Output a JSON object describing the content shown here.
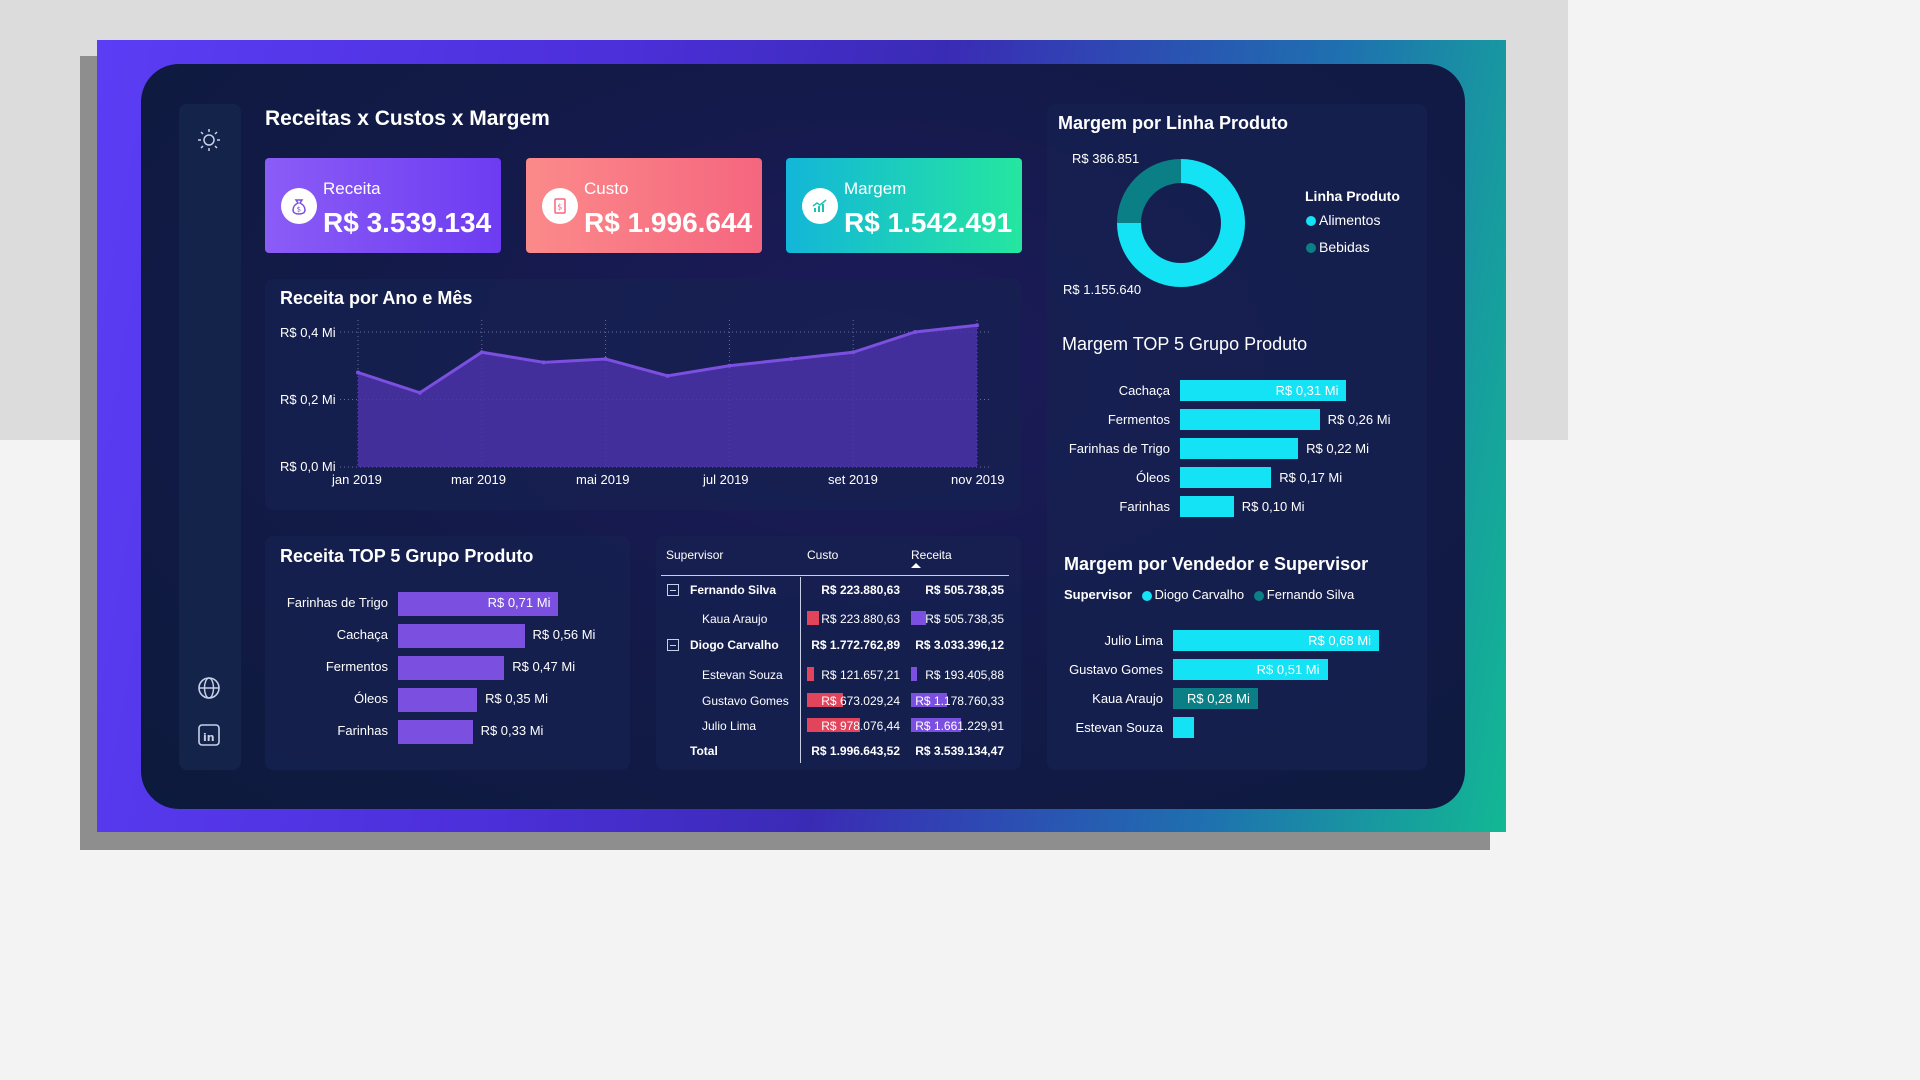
{
  "page": {
    "title": "Receitas x Custos x Margem"
  },
  "sidebar": {
    "icons": [
      "sun-icon",
      "globe-icon",
      "linkedin-icon"
    ]
  },
  "kpis": {
    "receita": {
      "label": "Receita",
      "value": "R$ 3.539.134",
      "icon": "money-bag-icon"
    },
    "custo": {
      "label": "Custo",
      "value": "R$ 1.996.644",
      "icon": "receipt-icon"
    },
    "margem": {
      "label": "Margem",
      "value": "R$ 1.542.491",
      "icon": "growth-chart-icon"
    }
  },
  "colors": {
    "purple": "#7b4fe0",
    "cyan": "#14e2f5",
    "teal": "#0b7f86",
    "red": "#e2445c"
  },
  "revenue_chart": {
    "title": "Receita por Ano e Mês",
    "y_ticks": [
      "R$ 0,4 Mi",
      "R$ 0,2 Mi",
      "R$ 0,0 Mi"
    ],
    "x_ticks": [
      "jan 2019",
      "mar 2019",
      "mai 2019",
      "jul 2019",
      "set 2019",
      "nov 2019"
    ]
  },
  "top5_receita": {
    "title": "Receita TOP 5 Grupo Produto",
    "items": [
      {
        "label": "Farinhas de Trigo",
        "value": "R$ 0,71 Mi"
      },
      {
        "label": "Cachaça",
        "value": "R$ 0,56 Mi"
      },
      {
        "label": "Fermentos",
        "value": "R$ 0,47 Mi"
      },
      {
        "label": "Óleos",
        "value": "R$ 0,35 Mi"
      },
      {
        "label": "Farinhas",
        "value": "R$ 0,33 Mi"
      }
    ]
  },
  "table": {
    "headers": {
      "supervisor": "Supervisor",
      "custo": "Custo",
      "receita": "Receita"
    },
    "rows": [
      {
        "name": "Fernando Silva",
        "custo": "R$ 223.880,63",
        "receita": "R$ 505.738,35",
        "group": true
      },
      {
        "name": "Kaua Araujo",
        "custo": "R$ 223.880,63",
        "receita": "R$ 505.738,35",
        "group": false
      },
      {
        "name": "Diogo Carvalho",
        "custo": "R$ 1.772.762,89",
        "receita": "R$ 3.033.396,12",
        "group": true
      },
      {
        "name": "Estevan Souza",
        "custo": "R$ 121.657,21",
        "receita": "R$ 193.405,88",
        "group": false
      },
      {
        "name": "Gustavo Gomes",
        "custo": "R$ 673.029,24",
        "receita": "R$ 1.178.760,33",
        "group": false
      },
      {
        "name": "Julio Lima",
        "custo": "R$ 978.076,44",
        "receita": "R$ 1.661.229,91",
        "group": false
      }
    ],
    "total": {
      "label": "Total",
      "custo": "R$ 1.996.643,52",
      "receita": "R$ 3.539.134,47"
    }
  },
  "donut": {
    "title": "Margem por Linha Produto",
    "label_top": "R$ 386.851",
    "label_bottom": "R$ 1.155.640",
    "legend_title": "Linha Produto",
    "legend": [
      "Alimentos",
      "Bebidas"
    ]
  },
  "top5_margem": {
    "title": "Margem TOP 5 Grupo Produto",
    "items": [
      {
        "label": "Cachaça",
        "value": "R$ 0,31 Mi"
      },
      {
        "label": "Fermentos",
        "value": "R$ 0,26 Mi"
      },
      {
        "label": "Farinhas de Trigo",
        "value": "R$ 0,22 Mi"
      },
      {
        "label": "Óleos",
        "value": "R$ 0,17 Mi"
      },
      {
        "label": "Farinhas",
        "value": "R$ 0,10 Mi"
      }
    ]
  },
  "vendedor": {
    "title": "Margem por Vendedor e Supervisor",
    "legend_title": "Supervisor",
    "legend": [
      "Diogo Carvalho",
      "Fernando Silva"
    ],
    "items": [
      {
        "label": "Julio Lima",
        "value": "R$ 0,68 Mi"
      },
      {
        "label": "Gustavo Gomes",
        "value": "R$ 0,51 Mi"
      },
      {
        "label": "Kaua Araujo",
        "value": "R$ 0,28 Mi"
      },
      {
        "label": "Estevan Souza",
        "value": ""
      }
    ]
  },
  "chart_data": [
    {
      "type": "area",
      "title": "Receita por Ano e Mês",
      "x": [
        "jan 2019",
        "fev 2019",
        "mar 2019",
        "abr 2019",
        "mai 2019",
        "jun 2019",
        "jul 2019",
        "ago 2019",
        "set 2019",
        "out 2019",
        "nov 2019"
      ],
      "values": [
        0.28,
        0.22,
        0.34,
        0.31,
        0.32,
        0.27,
        0.3,
        0.32,
        0.34,
        0.4,
        0.42
      ],
      "ylim": [
        0,
        0.4
      ],
      "grid": true
    },
    {
      "type": "bar",
      "title": "Receita TOP 5 Grupo Produto",
      "categories": [
        "Farinhas de Trigo",
        "Cachaça",
        "Fermentos",
        "Óleos",
        "Farinhas"
      ],
      "values": [
        0.71,
        0.56,
        0.47,
        0.35,
        0.33
      ]
    },
    {
      "type": "pie",
      "title": "Margem por Linha Produto",
      "categories": [
        "Alimentos",
        "Bebidas"
      ],
      "values": [
        1155640,
        386851
      ]
    },
    {
      "type": "bar",
      "title": "Margem TOP 5 Grupo Produto",
      "categories": [
        "Cachaça",
        "Fermentos",
        "Farinhas de Trigo",
        "Óleos",
        "Farinhas"
      ],
      "values": [
        0.31,
        0.26,
        0.22,
        0.17,
        0.1
      ]
    },
    {
      "type": "bar",
      "title": "Margem por Vendedor e Supervisor",
      "categories": [
        "Julio Lima",
        "Gustavo Gomes",
        "Kaua Araujo",
        "Estevan Souza"
      ],
      "values": [
        0.68,
        0.51,
        0.28,
        0.07
      ],
      "supervisor": [
        "Diogo Carvalho",
        "Diogo Carvalho",
        "Fernando Silva",
        "Diogo Carvalho"
      ]
    },
    {
      "type": "table",
      "title": "",
      "columns": [
        "Supervisor",
        "Custo",
        "Receita"
      ],
      "rows": [
        [
          "Fernando Silva",
          223880.63,
          505738.35
        ],
        [
          "Kaua Araujo",
          223880.63,
          505738.35
        ],
        [
          "Diogo Carvalho",
          1772762.89,
          3033396.12
        ],
        [
          "Estevan Souza",
          121657.21,
          193405.88
        ],
        [
          "Gustavo Gomes",
          673029.24,
          1178760.33
        ],
        [
          "Julio Lima",
          978076.44,
          1661229.91
        ],
        [
          "Total",
          1996643.52,
          3539134.47
        ]
      ]
    }
  ]
}
